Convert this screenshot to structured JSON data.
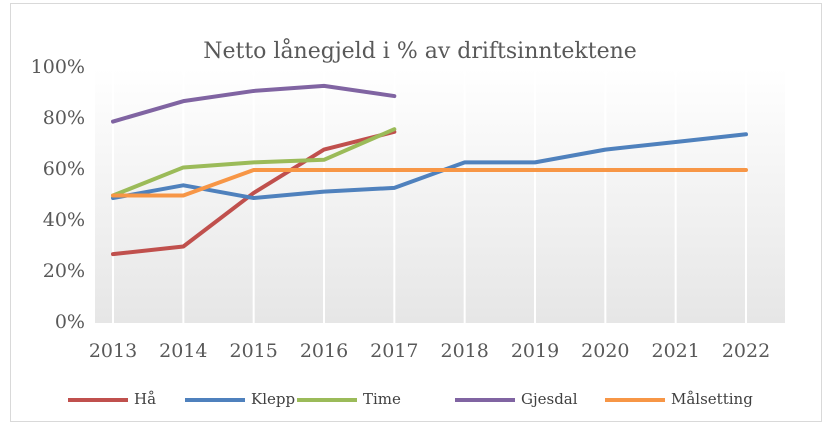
{
  "chart_data": {
    "type": "line",
    "title": "Netto lånegjeld i % av driftsinntektene",
    "categories": [
      "2013",
      "2014",
      "2015",
      "2016",
      "2017",
      "2018",
      "2019",
      "2020",
      "2021",
      "2022"
    ],
    "series": [
      {
        "name": "Hå",
        "color": "#c0504d",
        "values": [
          27,
          30,
          51,
          68,
          75,
          null,
          null,
          null,
          null,
          null
        ]
      },
      {
        "name": "Klepp",
        "color": "#4f81bd",
        "values": [
          49,
          54,
          49,
          51.5,
          53,
          63,
          63,
          68,
          71,
          74
        ]
      },
      {
        "name": "Time",
        "color": "#9bbb59",
        "values": [
          50,
          61,
          63,
          64,
          76,
          null,
          null,
          null,
          null,
          null
        ]
      },
      {
        "name": "Gjesdal",
        "color": "#8064a2",
        "values": [
          79,
          87,
          91,
          93,
          89,
          null,
          null,
          null,
          null,
          null
        ]
      },
      {
        "name": "Målsetting",
        "color": "#f79646",
        "values": [
          50,
          50,
          60,
          60,
          60,
          60,
          60,
          60,
          60,
          60
        ]
      }
    ],
    "ylim": [
      0,
      100
    ],
    "yticks": [
      {
        "value": 0,
        "label": "0%"
      },
      {
        "value": 20,
        "label": "20%"
      },
      {
        "value": 40,
        "label": "40%"
      },
      {
        "value": 60,
        "label": "60%"
      },
      {
        "value": 80,
        "label": "80%"
      },
      {
        "value": 100,
        "label": "100%"
      }
    ],
    "grid": true,
    "legend": "bottom"
  }
}
